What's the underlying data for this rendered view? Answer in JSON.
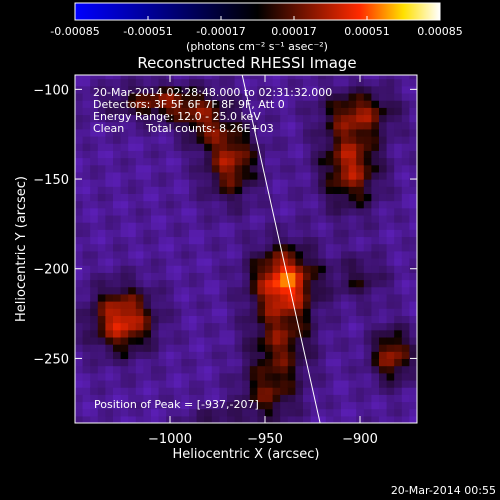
{
  "colorbar": {
    "tick_labels": [
      "-0.00085",
      "-0.00051",
      "-0.00017",
      "0.00017",
      "0.00051",
      "0.00085"
    ],
    "tick_values": [
      -0.00085,
      -0.00051,
      -0.00017,
      0.00017,
      0.00051,
      0.00085
    ],
    "range": [
      -0.00085,
      0.00085
    ],
    "unit_label": "(photons cm⁻² s⁻¹ asec⁻²)",
    "colors": [
      "#0000ff",
      "#000000",
      "#ff0000",
      "#ffff00",
      "#ffffff"
    ]
  },
  "chart_data": {
    "type": "heatmap",
    "title": "Reconstructed RHESSI Image",
    "xlabel": "Heliocentric X (arcsec)",
    "ylabel": "Heliocentric Y (arcsec)",
    "xlim": [
      -1050,
      -870
    ],
    "ylim": [
      -286,
      -92
    ],
    "x_ticks": [
      -1000,
      -950,
      -900
    ],
    "x_tick_labels": [
      "−1000",
      "−950",
      "−900"
    ],
    "y_ticks": [
      -100,
      -150,
      -200,
      -250
    ],
    "y_tick_labels": [
      "−100",
      "−150",
      "−200",
      "−250"
    ],
    "annotations": [
      "20-Mar-2014 02:28:48.000 to 02:31:32.000",
      "Detectors: 3F 5F 6F 7F 8F 9F, Att 0",
      "Energy Range: 12.0 - 25.0 keV",
      "Clean",
      "Total counts: 8.26E+03",
      "Position of Peak = [-937,-207]"
    ],
    "peak": [
      -937,
      -207
    ],
    "limb_line": [
      [
        -962,
        -92
      ],
      [
        -921,
        -286
      ]
    ],
    "sources": [
      {
        "x": -940,
        "y": -207,
        "amp": 1.0,
        "sx": 12,
        "sy": 14
      },
      {
        "x": -942,
        "y": -242,
        "amp": 0.55,
        "sx": 12,
        "sy": 14
      },
      {
        "x": -948,
        "y": -270,
        "amp": 0.5,
        "sx": 11,
        "sy": 11
      },
      {
        "x": -1025,
        "y": -228,
        "amp": 0.88,
        "sx": 12,
        "sy": 13
      },
      {
        "x": -1003,
        "y": -107,
        "amp": 0.65,
        "sx": 20,
        "sy": 7
      },
      {
        "x": -968,
        "y": -140,
        "amp": 0.72,
        "sx": 10,
        "sy": 15
      },
      {
        "x": -983,
        "y": -120,
        "amp": 0.45,
        "sx": 9,
        "sy": 8
      },
      {
        "x": -905,
        "y": -142,
        "amp": 0.75,
        "sx": 11,
        "sy": 17
      },
      {
        "x": -900,
        "y": -112,
        "amp": 0.55,
        "sx": 14,
        "sy": 9
      },
      {
        "x": -883,
        "y": -248,
        "amp": 0.7,
        "sx": 8,
        "sy": 11
      },
      {
        "x": -900,
        "y": -205,
        "amp": 0.35,
        "sx": 10,
        "sy": 9
      },
      {
        "x": -975,
        "y": -285,
        "amp": 0.3,
        "sx": 12,
        "sy": 6
      }
    ],
    "background": -0.38
  },
  "footer_date": "20-Mar-2014 00:55"
}
